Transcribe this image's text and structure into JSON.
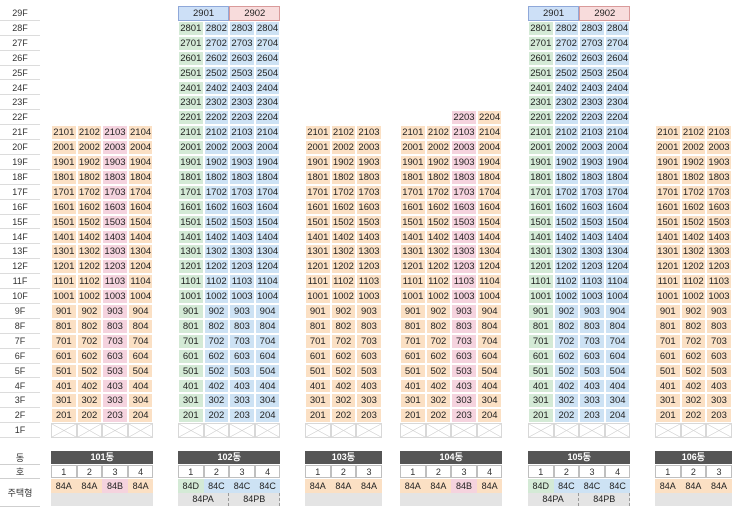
{
  "floors": [
    "29F",
    "28F",
    "27F",
    "26F",
    "25F",
    "24F",
    "23F",
    "22F",
    "21F",
    "20F",
    "19F",
    "18F",
    "17F",
    "16F",
    "15F",
    "14F",
    "13F",
    "12F",
    "11F",
    "10F",
    "9F",
    "8F",
    "7F",
    "6F",
    "5F",
    "4F",
    "3F",
    "2F",
    "1F"
  ],
  "legend_labels": {
    "dong": "동",
    "ho": "호",
    "type": "주택형"
  },
  "buildings": [
    {
      "name": "101동",
      "lines": [
        "1",
        "2",
        "3",
        "4"
      ],
      "types": [
        "84A",
        "84A",
        "84B",
        "84A"
      ],
      "top_floor": 21,
      "subtypes": []
    },
    {
      "name": "102동",
      "lines": [
        "1",
        "2",
        "3",
        "4"
      ],
      "types": [
        "84D",
        "84C",
        "84C",
        "84C"
      ],
      "top_floor": 28,
      "penthouse": [
        "2901",
        "2902"
      ],
      "subtypes": [
        "84PA",
        "84PB"
      ]
    },
    {
      "name": "103동",
      "lines": [
        "1",
        "2",
        "3"
      ],
      "types": [
        "84A",
        "84A",
        "84A"
      ],
      "top_floor": 21,
      "subtypes": []
    },
    {
      "name": "104동",
      "lines": [
        "1",
        "2",
        "3",
        "4"
      ],
      "types": [
        "84A",
        "84A",
        "84B",
        "84A"
      ],
      "top_floor": 21,
      "extra_22": [
        "2203",
        "2204"
      ],
      "subtypes": []
    },
    {
      "name": "105동",
      "lines": [
        "1",
        "2",
        "3",
        "4"
      ],
      "types": [
        "84D",
        "84C",
        "84C",
        "84C"
      ],
      "top_floor": 28,
      "penthouse": [
        "2901",
        "2902"
      ],
      "subtypes": [
        "84PA",
        "84PB"
      ]
    },
    {
      "name": "106동",
      "lines": [
        "1",
        "2",
        "3"
      ],
      "types": [
        "84A",
        "84A",
        "84A"
      ],
      "top_floor": 21,
      "subtypes": []
    }
  ],
  "colors": {
    "84A": "#fbe0c4",
    "84B": "#f5d3de",
    "84C": "#cde2f4",
    "84D": "#d4ead6",
    "header": "#555555"
  }
}
